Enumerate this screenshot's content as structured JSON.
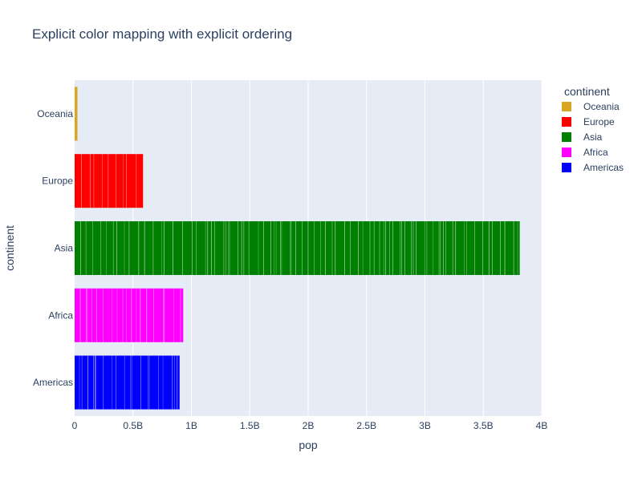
{
  "chart_data": {
    "type": "bar",
    "orientation": "horizontal",
    "stacked": true,
    "title": "Explicit color mapping with explicit ordering",
    "xlabel": "pop",
    "ylabel": "continent",
    "xlim": [
      0,
      4000000000
    ],
    "x_ticks": [
      0,
      500000000,
      1000000000,
      1500000000,
      2000000000,
      2500000000,
      3000000000,
      3500000000,
      4000000000
    ],
    "x_tick_labels": [
      "0",
      "0.5B",
      "1B",
      "1.5B",
      "2B",
      "2.5B",
      "3B",
      "3.5B",
      "4B"
    ],
    "categories": [
      "Oceania",
      "Europe",
      "Asia",
      "Africa",
      "Americas"
    ],
    "series": [
      {
        "name": "Oceania",
        "color": "#DAA520",
        "total": 24000000
      },
      {
        "name": "Europe",
        "color": "#FF0000",
        "total": 586000000
      },
      {
        "name": "Asia",
        "color": "#008000",
        "total": 3812000000
      },
      {
        "name": "Africa",
        "color": "#FF00FF",
        "total": 930000000
      },
      {
        "name": "Americas",
        "color": "#0000FF",
        "total": 899000000
      }
    ],
    "legend_title": "continent",
    "legend_placement": "right",
    "grid": true,
    "plot_bgcolor": "#E5ECF6"
  }
}
